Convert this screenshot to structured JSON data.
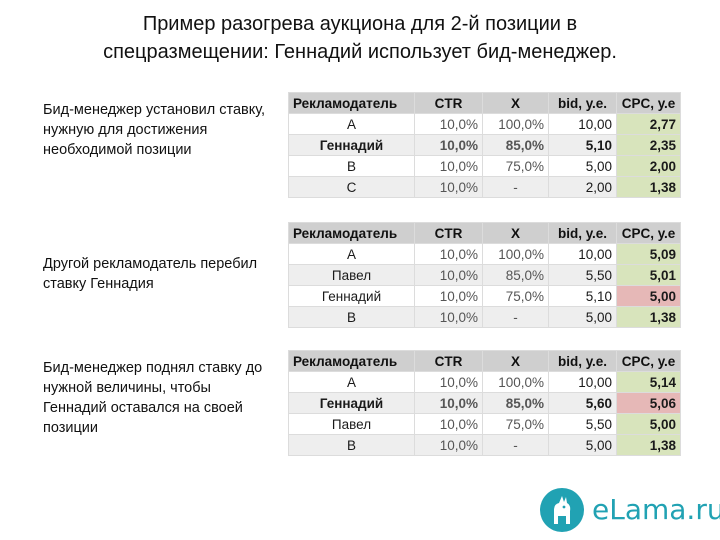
{
  "title": {
    "line1": "Пример разогрева аукциона для 2-й позиции в",
    "line2": "спецразмещении: Геннадий использует бид-менеджер."
  },
  "notes": [
    "Бид-менеджер установил ставку, нужную для достижения необходимой позиции",
    "Другой рекламодатель перебил ставку Геннадия",
    "Бид-менеджер поднял ставку до нужной величины, чтобы Геннадий оставался на своей позиции"
  ],
  "columns": [
    "Рекламодатель",
    "CTR",
    "X",
    "bid, у.е.",
    "CPC, у.е"
  ],
  "tables": [
    {
      "rows": [
        {
          "adv": "А",
          "ctr": "10,0%",
          "x": "100,0%",
          "bid": "10,00",
          "cpc": "2,77",
          "bold": false,
          "highlight": false
        },
        {
          "adv": "Геннадий",
          "ctr": "10,0%",
          "x": "85,0%",
          "bid": "5,10",
          "cpc": "2,35",
          "bold": true,
          "highlight": false
        },
        {
          "adv": "В",
          "ctr": "10,0%",
          "x": "75,0%",
          "bid": "5,00",
          "cpc": "2,00",
          "bold": false,
          "highlight": false
        },
        {
          "adv": "С",
          "ctr": "10,0%",
          "x": "-",
          "bid": "2,00",
          "cpc": "1,38",
          "bold": false,
          "highlight": false
        }
      ]
    },
    {
      "rows": [
        {
          "adv": "А",
          "ctr": "10,0%",
          "x": "100,0%",
          "bid": "10,00",
          "cpc": "5,09",
          "bold": false,
          "highlight": false
        },
        {
          "adv": "Павел",
          "ctr": "10,0%",
          "x": "85,0%",
          "bid": "5,50",
          "cpc": "5,01",
          "bold": false,
          "highlight": false
        },
        {
          "adv": "Геннадий",
          "ctr": "10,0%",
          "x": "75,0%",
          "bid": "5,10",
          "cpc": "5,00",
          "bold": false,
          "highlight": true
        },
        {
          "adv": "В",
          "ctr": "10,0%",
          "x": "-",
          "bid": "5,00",
          "cpc": "1,38",
          "bold": false,
          "highlight": false
        }
      ]
    },
    {
      "rows": [
        {
          "adv": "А",
          "ctr": "10,0%",
          "x": "100,0%",
          "bid": "10,00",
          "cpc": "5,14",
          "bold": false,
          "highlight": false
        },
        {
          "adv": "Геннадий",
          "ctr": "10,0%",
          "x": "85,0%",
          "bid": "5,60",
          "cpc": "5,06",
          "bold": true,
          "highlight": true
        },
        {
          "adv": "Павел",
          "ctr": "10,0%",
          "x": "75,0%",
          "bid": "5,50",
          "cpc": "5,00",
          "bold": false,
          "highlight": false
        },
        {
          "adv": "В",
          "ctr": "10,0%",
          "x": "-",
          "bid": "5,00",
          "cpc": "1,38",
          "bold": false,
          "highlight": false
        }
      ]
    }
  ],
  "colors": {
    "cpc_normal": "#d8e4bc",
    "cpc_highlight": "#e6b8b7",
    "header_bg": "#cfcfcf",
    "brand": "#21a2b3"
  },
  "logo": {
    "text": "eLama.ru",
    "icon": "llama-icon"
  }
}
